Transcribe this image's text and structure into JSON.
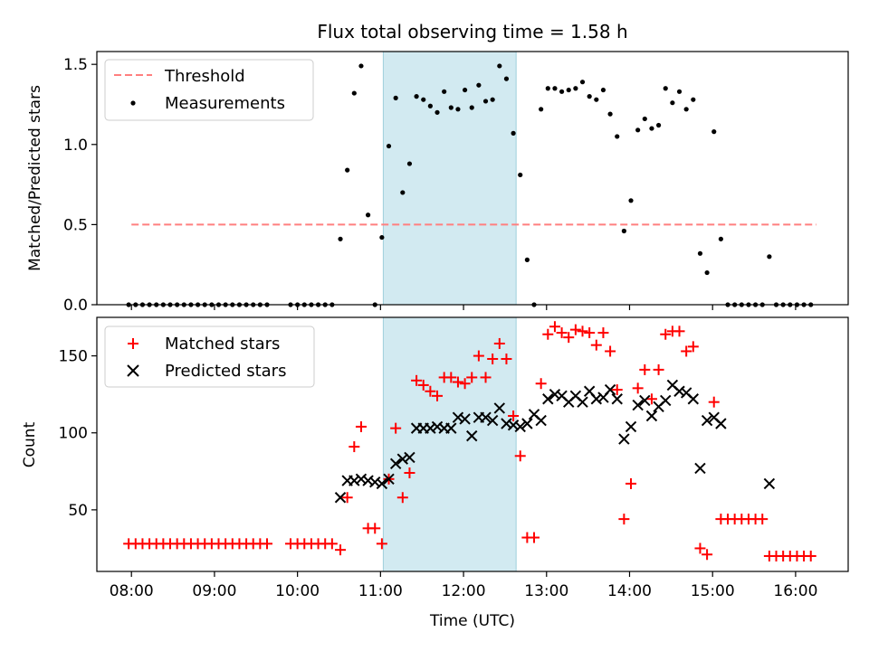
{
  "figure": {
    "title": "Flux total observing time = 1.58 h",
    "xlabel": "Time (UTC)",
    "x_ticks": [
      "08:00",
      "09:00",
      "10:00",
      "11:00",
      "12:00",
      "13:00",
      "14:00",
      "15:00",
      "16:00"
    ]
  },
  "chart_data": [
    {
      "type": "scatter",
      "title": "Flux total observing time = 1.58 h",
      "xlabel": "",
      "ylabel": "Matched/Predicted stars",
      "x_range": [
        "07:35",
        "16:38"
      ],
      "ylim": [
        0,
        1.58
      ],
      "y_ticks": [
        "0.0",
        "0.5",
        "1.0",
        "1.5"
      ],
      "y_tick_values": [
        0,
        0.5,
        1.0,
        1.5
      ],
      "legend": "upper-left",
      "grid": false,
      "highlight_span": {
        "start": "11:02",
        "end": "12:38",
        "color": "#add8e6"
      },
      "threshold": {
        "name": "Threshold",
        "value": 0.5,
        "x_start": "08:00",
        "x_end": "16:15",
        "color": "#ff7f7f"
      },
      "series": [
        {
          "name": "Measurements",
          "color": "#000000",
          "marker": "dot",
          "points": [
            [
              "07:58",
              0
            ],
            [
              "08:03",
              0
            ],
            [
              "08:08",
              0
            ],
            [
              "08:13",
              0
            ],
            [
              "08:18",
              0
            ],
            [
              "08:23",
              0
            ],
            [
              "08:28",
              0
            ],
            [
              "08:33",
              0
            ],
            [
              "08:38",
              0
            ],
            [
              "08:43",
              0
            ],
            [
              "08:48",
              0
            ],
            [
              "08:53",
              0
            ],
            [
              "08:58",
              0
            ],
            [
              "09:03",
              0
            ],
            [
              "09:08",
              0
            ],
            [
              "09:13",
              0
            ],
            [
              "09:18",
              0
            ],
            [
              "09:23",
              0
            ],
            [
              "09:28",
              0
            ],
            [
              "09:33",
              0
            ],
            [
              "09:38",
              0
            ],
            [
              "09:55",
              0
            ],
            [
              "10:00",
              0
            ],
            [
              "10:05",
              0
            ],
            [
              "10:10",
              0
            ],
            [
              "10:15",
              0
            ],
            [
              "10:20",
              0
            ],
            [
              "10:25",
              0
            ],
            [
              "10:31",
              0.41
            ],
            [
              "10:36",
              0.84
            ],
            [
              "10:41",
              1.32
            ],
            [
              "10:46",
              1.49
            ],
            [
              "10:51",
              0.56
            ],
            [
              "10:56",
              0
            ],
            [
              "11:01",
              0.42
            ],
            [
              "11:06",
              0.99
            ],
            [
              "11:11",
              1.29
            ],
            [
              "11:16",
              0.7
            ],
            [
              "11:21",
              0.88
            ],
            [
              "11:26",
              1.3
            ],
            [
              "11:31",
              1.28
            ],
            [
              "11:36",
              1.24
            ],
            [
              "11:41",
              1.2
            ],
            [
              "11:46",
              1.33
            ],
            [
              "11:51",
              1.23
            ],
            [
              "11:56",
              1.22
            ],
            [
              "12:01",
              1.34
            ],
            [
              "12:06",
              1.23
            ],
            [
              "12:11",
              1.37
            ],
            [
              "12:16",
              1.27
            ],
            [
              "12:21",
              1.28
            ],
            [
              "12:26",
              1.49
            ],
            [
              "12:31",
              1.41
            ],
            [
              "12:36",
              1.07
            ],
            [
              "12:41",
              0.81
            ],
            [
              "12:46",
              0.28
            ],
            [
              "12:51",
              0
            ],
            [
              "12:56",
              1.22
            ],
            [
              "13:01",
              1.35
            ],
            [
              "13:06",
              1.35
            ],
            [
              "13:11",
              1.33
            ],
            [
              "13:16",
              1.34
            ],
            [
              "13:21",
              1.35
            ],
            [
              "13:26",
              1.39
            ],
            [
              "13:31",
              1.3
            ],
            [
              "13:36",
              1.28
            ],
            [
              "13:41",
              1.34
            ],
            [
              "13:46",
              1.19
            ],
            [
              "13:51",
              1.05
            ],
            [
              "13:56",
              0.46
            ],
            [
              "14:01",
              0.65
            ],
            [
              "14:06",
              1.09
            ],
            [
              "14:11",
              1.16
            ],
            [
              "14:16",
              1.1
            ],
            [
              "14:21",
              1.12
            ],
            [
              "14:26",
              1.35
            ],
            [
              "14:31",
              1.26
            ],
            [
              "14:36",
              1.33
            ],
            [
              "14:41",
              1.22
            ],
            [
              "14:46",
              1.28
            ],
            [
              "14:51",
              0.32
            ],
            [
              "14:56",
              0.2
            ],
            [
              "15:01",
              1.08
            ],
            [
              "15:06",
              0.41
            ],
            [
              "15:11",
              0
            ],
            [
              "15:16",
              0
            ],
            [
              "15:21",
              0
            ],
            [
              "15:26",
              0
            ],
            [
              "15:31",
              0
            ],
            [
              "15:36",
              0
            ],
            [
              "15:41",
              0.3
            ],
            [
              "15:46",
              0
            ],
            [
              "15:51",
              0
            ],
            [
              "15:56",
              0
            ],
            [
              "16:01",
              0
            ],
            [
              "16:06",
              0
            ],
            [
              "16:11",
              0
            ]
          ]
        }
      ]
    },
    {
      "type": "scatter",
      "title": "",
      "xlabel": "Time (UTC)",
      "ylabel": "Count",
      "x_range": [
        "07:35",
        "16:38"
      ],
      "ylim": [
        10,
        175
      ],
      "y_ticks": [
        "50",
        "100",
        "150"
      ],
      "y_tick_values": [
        50,
        100,
        150
      ],
      "legend": "upper-left",
      "grid": false,
      "highlight_span": {
        "start": "11:02",
        "end": "12:38",
        "color": "#add8e6"
      },
      "series": [
        {
          "name": "Matched stars",
          "color": "#ff0000",
          "marker": "plus",
          "points": [
            [
              "07:58",
              28
            ],
            [
              "08:03",
              28
            ],
            [
              "08:08",
              28
            ],
            [
              "08:13",
              28
            ],
            [
              "08:18",
              28
            ],
            [
              "08:23",
              28
            ],
            [
              "08:28",
              28
            ],
            [
              "08:33",
              28
            ],
            [
              "08:38",
              28
            ],
            [
              "08:43",
              28
            ],
            [
              "08:48",
              28
            ],
            [
              "08:53",
              28
            ],
            [
              "08:58",
              28
            ],
            [
              "09:03",
              28
            ],
            [
              "09:08",
              28
            ],
            [
              "09:13",
              28
            ],
            [
              "09:18",
              28
            ],
            [
              "09:23",
              28
            ],
            [
              "09:28",
              28
            ],
            [
              "09:33",
              28
            ],
            [
              "09:38",
              28
            ],
            [
              "09:55",
              28
            ],
            [
              "10:00",
              28
            ],
            [
              "10:05",
              28
            ],
            [
              "10:10",
              28
            ],
            [
              "10:15",
              28
            ],
            [
              "10:20",
              28
            ],
            [
              "10:25",
              28
            ],
            [
              "10:31",
              24
            ],
            [
              "10:36",
              58
            ],
            [
              "10:41",
              91
            ],
            [
              "10:46",
              104
            ],
            [
              "10:51",
              38
            ],
            [
              "10:56",
              38
            ],
            [
              "11:01",
              28
            ],
            [
              "11:06",
              70
            ],
            [
              "11:11",
              103
            ],
            [
              "11:16",
              58
            ],
            [
              "11:21",
              74
            ],
            [
              "11:26",
              134
            ],
            [
              "11:31",
              131
            ],
            [
              "11:36",
              127
            ],
            [
              "11:41",
              124
            ],
            [
              "11:46",
              136
            ],
            [
              "11:51",
              136
            ],
            [
              "11:56",
              133
            ],
            [
              "12:01",
              132
            ],
            [
              "12:06",
              136
            ],
            [
              "12:11",
              150
            ],
            [
              "12:16",
              136
            ],
            [
              "12:21",
              148
            ],
            [
              "12:26",
              158
            ],
            [
              "12:31",
              148
            ],
            [
              "12:36",
              111
            ],
            [
              "12:41",
              85
            ],
            [
              "12:46",
              32
            ],
            [
              "12:51",
              32
            ],
            [
              "12:56",
              132
            ],
            [
              "13:01",
              164
            ],
            [
              "13:06",
              169
            ],
            [
              "13:11",
              165
            ],
            [
              "13:16",
              162
            ],
            [
              "13:21",
              167
            ],
            [
              "13:26",
              166
            ],
            [
              "13:31",
              165
            ],
            [
              "13:36",
              157
            ],
            [
              "13:41",
              165
            ],
            [
              "13:46",
              153
            ],
            [
              "13:51",
              128
            ],
            [
              "13:56",
              44
            ],
            [
              "14:01",
              67
            ],
            [
              "14:06",
              129
            ],
            [
              "14:11",
              141
            ],
            [
              "14:16",
              122
            ],
            [
              "14:21",
              141
            ],
            [
              "14:26",
              164
            ],
            [
              "14:31",
              166
            ],
            [
              "14:36",
              166
            ],
            [
              "14:41",
              153
            ],
            [
              "14:46",
              156
            ],
            [
              "14:51",
              25
            ],
            [
              "14:56",
              21
            ],
            [
              "15:01",
              120
            ],
            [
              "15:06",
              44
            ],
            [
              "15:11",
              44
            ],
            [
              "15:16",
              44
            ],
            [
              "15:21",
              44
            ],
            [
              "15:26",
              44
            ],
            [
              "15:31",
              44
            ],
            [
              "15:36",
              44
            ],
            [
              "15:41",
              20
            ],
            [
              "15:46",
              20
            ],
            [
              "15:51",
              20
            ],
            [
              "15:56",
              20
            ],
            [
              "16:01",
              20
            ],
            [
              "16:06",
              20
            ],
            [
              "16:11",
              20
            ]
          ]
        },
        {
          "name": "Predicted stars",
          "color": "#000000",
          "marker": "x",
          "points": [
            [
              "10:31",
              58
            ],
            [
              "10:36",
              69
            ],
            [
              "10:41",
              69
            ],
            [
              "10:46",
              70
            ],
            [
              "10:51",
              69
            ],
            [
              "10:56",
              68
            ],
            [
              "11:01",
              67
            ],
            [
              "11:06",
              70
            ],
            [
              "11:11",
              80
            ],
            [
              "11:16",
              83
            ],
            [
              "11:21",
              84
            ],
            [
              "11:26",
              103
            ],
            [
              "11:31",
              103
            ],
            [
              "11:36",
              103
            ],
            [
              "11:41",
              104
            ],
            [
              "11:46",
              103
            ],
            [
              "11:51",
              103
            ],
            [
              "11:56",
              110
            ],
            [
              "12:01",
              109
            ],
            [
              "12:06",
              98
            ],
            [
              "12:11",
              110
            ],
            [
              "12:16",
              110
            ],
            [
              "12:21",
              108
            ],
            [
              "12:26",
              116
            ],
            [
              "12:31",
              106
            ],
            [
              "12:36",
              105
            ],
            [
              "12:41",
              104
            ],
            [
              "12:46",
              106
            ],
            [
              "12:51",
              112
            ],
            [
              "12:56",
              108
            ],
            [
              "13:01",
              122
            ],
            [
              "13:06",
              125
            ],
            [
              "13:11",
              124
            ],
            [
              "13:16",
              120
            ],
            [
              "13:21",
              124
            ],
            [
              "13:26",
              120
            ],
            [
              "13:31",
              127
            ],
            [
              "13:36",
              122
            ],
            [
              "13:41",
              123
            ],
            [
              "13:46",
              128
            ],
            [
              "13:51",
              122
            ],
            [
              "13:56",
              96
            ],
            [
              "14:01",
              104
            ],
            [
              "14:06",
              118
            ],
            [
              "14:11",
              121
            ],
            [
              "14:16",
              111
            ],
            [
              "14:21",
              117
            ],
            [
              "14:26",
              121
            ],
            [
              "14:31",
              131
            ],
            [
              "14:36",
              127
            ],
            [
              "14:41",
              126
            ],
            [
              "14:46",
              122
            ],
            [
              "14:51",
              77
            ],
            [
              "14:56",
              108
            ],
            [
              "15:01",
              110
            ],
            [
              "15:06",
              106
            ],
            [
              "15:41",
              67
            ]
          ]
        }
      ]
    }
  ]
}
